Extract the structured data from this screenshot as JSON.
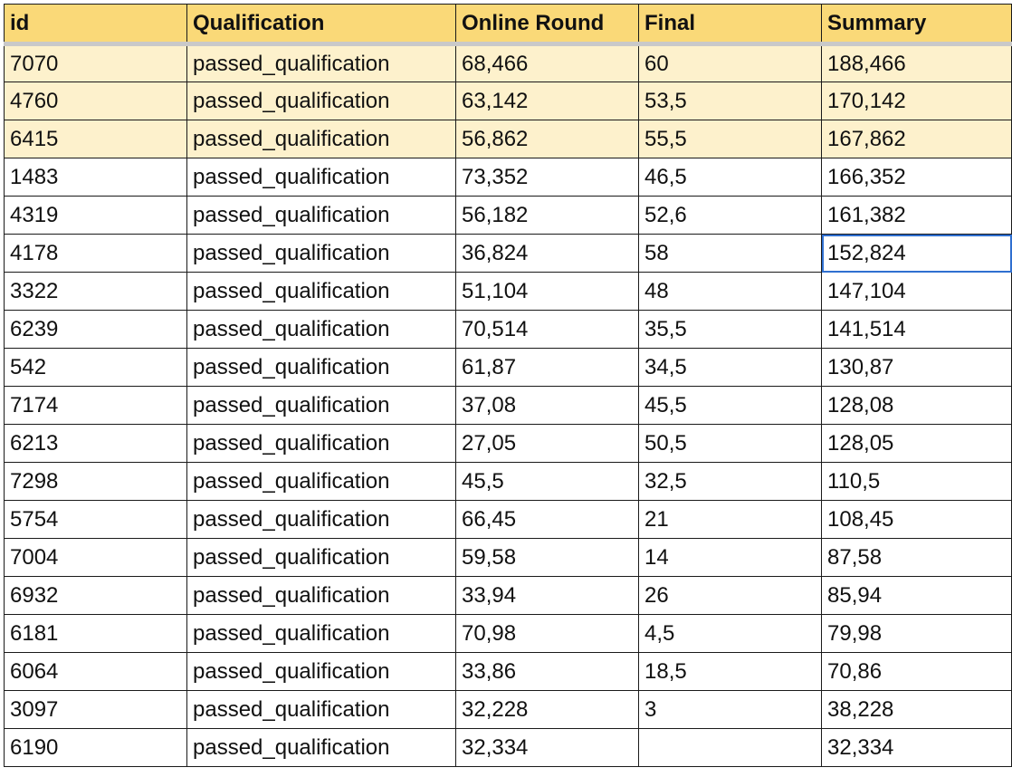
{
  "table": {
    "headers": {
      "id": "id",
      "qualification": "Qualification",
      "online_round": "Online Round",
      "final": "Final",
      "summary": "Summary"
    },
    "rows": [
      {
        "id": "7070",
        "qualification": "passed_qualification",
        "online_round": "68,466",
        "final": "60",
        "summary": "188,466"
      },
      {
        "id": "4760",
        "qualification": "passed_qualification",
        "online_round": "63,142",
        "final": "53,5",
        "summary": "170,142"
      },
      {
        "id": "6415",
        "qualification": "passed_qualification",
        "online_round": "56,862",
        "final": "55,5",
        "summary": "167,862"
      },
      {
        "id": "1483",
        "qualification": "passed_qualification",
        "online_round": "73,352",
        "final": "46,5",
        "summary": "166,352"
      },
      {
        "id": "4319",
        "qualification": "passed_qualification",
        "online_round": "56,182",
        "final": "52,6",
        "summary": "161,382"
      },
      {
        "id": "4178",
        "qualification": "passed_qualification",
        "online_round": "36,824",
        "final": "58",
        "summary": "152,824"
      },
      {
        "id": "3322",
        "qualification": "passed_qualification",
        "online_round": "51,104",
        "final": "48",
        "summary": "147,104"
      },
      {
        "id": "6239",
        "qualification": "passed_qualification",
        "online_round": "70,514",
        "final": "35,5",
        "summary": "141,514"
      },
      {
        "id": "542",
        "qualification": "passed_qualification",
        "online_round": "61,87",
        "final": "34,5",
        "summary": "130,87"
      },
      {
        "id": "7174",
        "qualification": "passed_qualification",
        "online_round": "37,08",
        "final": "45,5",
        "summary": "128,08"
      },
      {
        "id": "6213",
        "qualification": "passed_qualification",
        "online_round": "27,05",
        "final": "50,5",
        "summary": "128,05"
      },
      {
        "id": "7298",
        "qualification": "passed_qualification",
        "online_round": "45,5",
        "final": "32,5",
        "summary": "110,5"
      },
      {
        "id": "5754",
        "qualification": "passed_qualification",
        "online_round": "66,45",
        "final": "21",
        "summary": "108,45"
      },
      {
        "id": "7004",
        "qualification": "passed_qualification",
        "online_round": "59,58",
        "final": "14",
        "summary": "87,58"
      },
      {
        "id": "6932",
        "qualification": "passed_qualification",
        "online_round": "33,94",
        "final": "26",
        "summary": "85,94"
      },
      {
        "id": "6181",
        "qualification": "passed_qualification",
        "online_round": "70,98",
        "final": "4,5",
        "summary": "79,98"
      },
      {
        "id": "6064",
        "qualification": "passed_qualification",
        "online_round": "33,86",
        "final": "18,5",
        "summary": "70,86"
      },
      {
        "id": "3097",
        "qualification": "passed_qualification",
        "online_round": "32,228",
        "final": "3",
        "summary": "38,228"
      },
      {
        "id": "6190",
        "qualification": "passed_qualification",
        "online_round": "32,334",
        "final": "",
        "summary": "32,334"
      }
    ]
  },
  "colors": {
    "header_fill": "#fad978",
    "highlight_fill": "#fdf1cc",
    "selection_border": "#2f6fd0"
  }
}
